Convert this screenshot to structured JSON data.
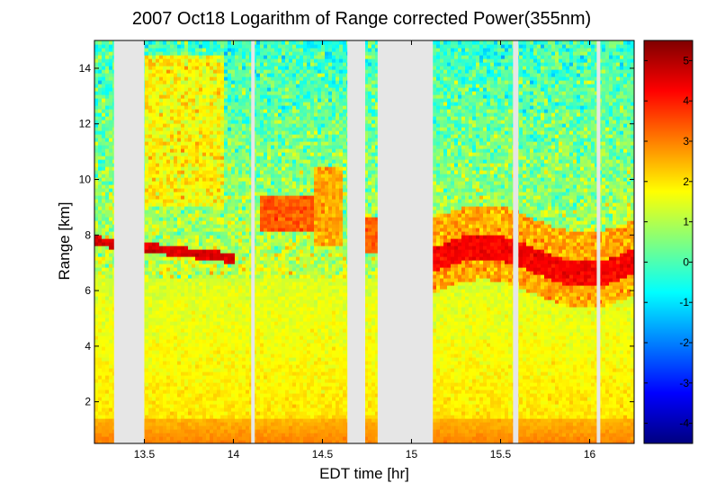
{
  "chart_data": {
    "type": "heatmap",
    "title": "2007 Oct18  Logarithm of Range corrected Power(355nm)",
    "xlabel": "EDT time [hr]",
    "ylabel": "Range [km]",
    "xlim": [
      13.22,
      16.25
    ],
    "ylim": [
      0.5,
      15
    ],
    "x_ticks": [
      "13.5",
      "14",
      "14.5",
      "15",
      "15.5",
      "16"
    ],
    "y_ticks": [
      "2",
      "4",
      "6",
      "8",
      "10",
      "12",
      "14"
    ],
    "colorbar": {
      "min": -4.5,
      "max": 5.5,
      "ticks": [
        "5",
        "4",
        "3",
        "2",
        "1",
        "0",
        "-1",
        "-2",
        "-3",
        "-4"
      ],
      "colormap": "jet"
    },
    "no_data_intervals_hr": [
      [
        13.33,
        13.5
      ],
      [
        14.1,
        14.12
      ],
      [
        14.64,
        14.74
      ],
      [
        14.81,
        15.12
      ],
      [
        15.57,
        15.6
      ],
      [
        16.04,
        16.06
      ]
    ],
    "layers": [
      {
        "feature": "boundary-layer",
        "range_km": [
          0.5,
          1.4
        ],
        "value": 3.0
      },
      {
        "feature": "lower-aerosol",
        "range_km": [
          1.4,
          6.5
        ],
        "value": 1.6
      },
      {
        "feature": "cirrus-early",
        "time_hr": [
          13.22,
          14.0
        ],
        "range_km": [
          7.2,
          7.7
        ],
        "value": 4.5
      },
      {
        "feature": "cirrus-mid",
        "time_hr": [
          14.15,
          14.85
        ],
        "range_km": [
          7.5,
          9.5
        ],
        "value": 3.2
      },
      {
        "feature": "cirrus-late",
        "time_hr": [
          15.12,
          16.25
        ],
        "range_km": [
          5.8,
          8.5
        ],
        "value": 4.2
      }
    ],
    "no_data_color": "#e6e6e6",
    "grid": false
  }
}
